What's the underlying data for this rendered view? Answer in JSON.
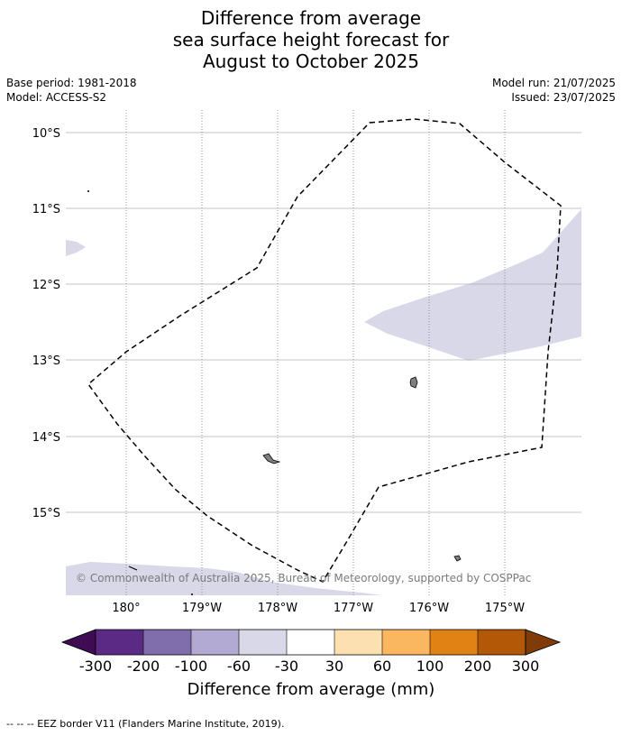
{
  "title_lines": [
    "Difference from average",
    "sea surface height forecast for",
    "August to October 2025"
  ],
  "meta_left": [
    "Base period: 1981-2018",
    "Model: ACCESS-S2"
  ],
  "meta_right": [
    "Model run: 21/07/2025",
    "Issued: 23/07/2025"
  ],
  "map": {
    "lat_labels": [
      "10°S",
      "11°S",
      "12°S",
      "13°S",
      "14°S",
      "15°S"
    ],
    "lon_labels": [
      "180°",
      "179°W",
      "178°W",
      "177°W",
      "176°W",
      "175°W"
    ],
    "copyright": "© Commonwealth of Australia 2025, Bureau of Meteorology, supported by COSPPac",
    "shading_color": "#d8d8e8",
    "land_color": "#808080",
    "eez_line": "dashed black"
  },
  "colorbar": {
    "title": "Difference from average (mm)",
    "tick_labels": [
      "-300",
      "-200",
      "-100",
      "-60",
      "-30",
      "30",
      "60",
      "100",
      "200",
      "300"
    ],
    "colors": [
      "#3f0b52",
      "#5a2a85",
      "#7f6eab",
      "#b2aad3",
      "#d8d8e8",
      "#ffffff",
      "#fde0b2",
      "#fbb660",
      "#e08214",
      "#b35806",
      "#7f3b08"
    ]
  },
  "footer": "--  --  -- EEZ border V11 (Flanders Marine Institute, 2019)."
}
